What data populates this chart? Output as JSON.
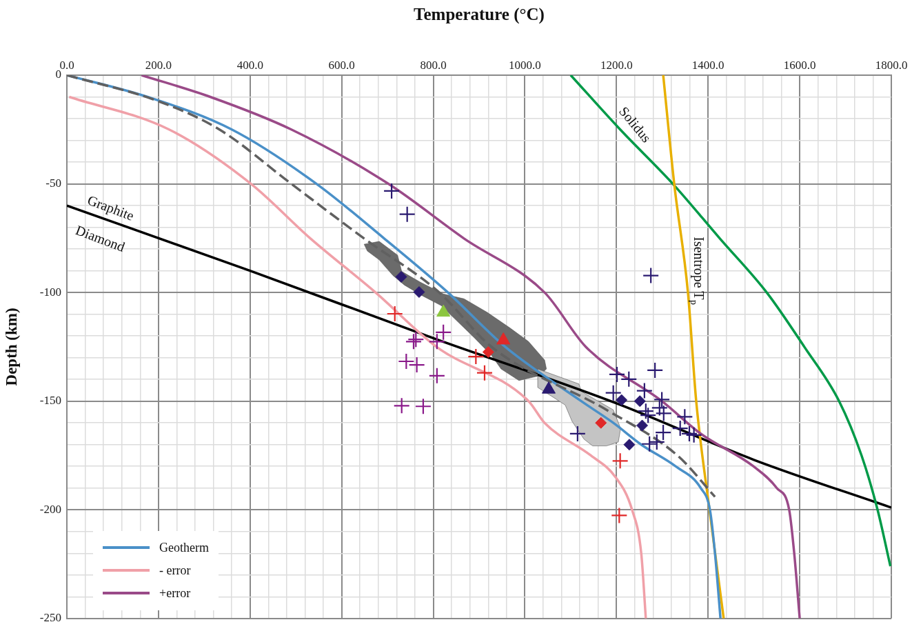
{
  "chart_data": {
    "type": "line",
    "xlabel": "Temperature (°C)",
    "ylabel": "Depth (km)",
    "xlim": [
      0,
      1800
    ],
    "xticks": [
      {
        "value": 0,
        "label": "0.0"
      },
      {
        "value": 40,
        "label": null
      },
      {
        "value": 80,
        "label": null
      },
      {
        "value": 120,
        "label": null
      },
      {
        "value": 160,
        "label": null
      },
      {
        "value": 200,
        "label": "200.0"
      },
      {
        "value": 240,
        "label": null
      },
      {
        "value": 280,
        "label": null
      },
      {
        "value": 320,
        "label": null
      },
      {
        "value": 360,
        "label": null
      },
      {
        "value": 400,
        "label": "400.0"
      },
      {
        "value": 440,
        "label": null
      },
      {
        "value": 480,
        "label": null
      },
      {
        "value": 520,
        "label": null
      },
      {
        "value": 560,
        "label": null
      },
      {
        "value": 600,
        "label": "600.0"
      },
      {
        "value": 640,
        "label": null
      },
      {
        "value": 680,
        "label": null
      },
      {
        "value": 720,
        "label": null
      },
      {
        "value": 760,
        "label": null
      },
      {
        "value": 800,
        "label": "800.0"
      },
      {
        "value": 840,
        "label": null
      },
      {
        "value": 880,
        "label": null
      },
      {
        "value": 920,
        "label": null
      },
      {
        "value": 960,
        "label": null
      },
      {
        "value": 1000,
        "label": "1000.0"
      },
      {
        "value": 1040,
        "label": null
      },
      {
        "value": 1080,
        "label": null
      },
      {
        "value": 1120,
        "label": null
      },
      {
        "value": 1160,
        "label": null
      },
      {
        "value": 1200,
        "label": "1200.0"
      },
      {
        "value": 1240,
        "label": null
      },
      {
        "value": 1280,
        "label": null
      },
      {
        "value": 1320,
        "label": null
      },
      {
        "value": 1360,
        "label": null
      },
      {
        "value": 1400,
        "label": "1400.0"
      },
      {
        "value": 1440,
        "label": null
      },
      {
        "value": 1480,
        "label": null
      },
      {
        "value": 1520,
        "label": null
      },
      {
        "value": 1560,
        "label": null
      },
      {
        "value": 1600,
        "label": "1600.0"
      },
      {
        "value": 1640,
        "label": null
      },
      {
        "value": 1680,
        "label": null
      },
      {
        "value": 1720,
        "label": null
      },
      {
        "value": 1760,
        "label": null
      },
      {
        "value": 1800,
        "label": "1800.0"
      }
    ],
    "ylim": [
      -250,
      0
    ],
    "yticks": [
      -250,
      {
        "value": -240,
        "label": null
      },
      {
        "value": -230,
        "label": null
      },
      {
        "value": -220,
        "label": null
      },
      {
        "value": -210,
        "label": null
      },
      -200,
      {
        "value": -190,
        "label": null
      },
      {
        "value": -180,
        "label": null
      },
      {
        "value": -170,
        "label": null
      },
      {
        "value": -160,
        "label": null
      },
      -150,
      {
        "value": -140,
        "label": null
      },
      {
        "value": -130,
        "label": null
      },
      {
        "value": -120,
        "label": null
      },
      {
        "value": -110,
        "label": null
      },
      -100,
      {
        "value": -90,
        "label": null
      },
      {
        "value": -80,
        "label": null
      },
      {
        "value": -70,
        "label": null
      },
      {
        "value": -60,
        "label": null
      },
      -50,
      {
        "value": -40,
        "label": null
      },
      {
        "value": -30,
        "label": null
      },
      {
        "value": -20,
        "label": null
      },
      {
        "value": -10,
        "label": null
      },
      0
    ],
    "grid": true,
    "legend": "bottom left",
    "marker": "none",
    "annotations": [
      "Graphite",
      "Diamond",
      "Solidus",
      "Isentrope T$_{p}$"
    ],
    "series": [
      {
        "type": "area",
        "color": "#6b6b6b",
        "x": [
          649,
          682,
          722,
          731,
          772,
          822,
          867,
          918,
          968,
          1008,
          1043,
          1047,
          1032,
          987,
          948,
          927,
          888,
          817,
          777,
          737,
          712,
          682,
          656
        ],
        "values": [
          -77.8,
          -76.5,
          -82.8,
          -90.3,
          -95.3,
          -100.7,
          -102.9,
          -109.2,
          -116.4,
          -122.6,
          -131.1,
          -135.2,
          -138.3,
          -140.5,
          -135.2,
          -128.9,
          -120.5,
          -106,
          -101.6,
          -96.6,
          -92.2,
          -85,
          -80.9
        ]
      },
      {
        "type": "area",
        "color": "#c4c4c4",
        "x": [
          1028,
          1118,
          1123,
          1193,
          1209,
          1204,
          1178,
          1148,
          1129,
          1103,
          1088,
          1058,
          1028
        ],
        "values": [
          -135.2,
          -142.1,
          -145.5,
          -154,
          -162.5,
          -168.8,
          -170.6,
          -170.6,
          -167.5,
          -159.3,
          -151.8,
          -147.7,
          -143.7
        ]
      },
      {
        "line_style": "solid",
        "color": "#000000",
        "x": [
          0,
          400,
          800,
          1200,
          1500,
          1800
        ],
        "values": [
          -60,
          -90,
          -121,
          -151,
          -177,
          -199
        ]
      },
      {
        "line_style": "solid",
        "color": "#009a48",
        "x": [
          1100,
          1208,
          1323,
          1425,
          1528,
          1610,
          1686,
          1735,
          1770,
          1798
        ],
        "values": [
          0,
          -25,
          -50,
          -75,
          -100,
          -125,
          -150,
          -175,
          -200,
          -226
        ]
      },
      {
        "line_style": "solid",
        "color": "#e8b000",
        "x": [
          1302,
          1326,
          1356,
          1374,
          1403,
          1434
        ],
        "values": [
          0,
          -50,
          -100,
          -150,
          -200,
          -250
        ]
      },
      {
        "line_style": "solid",
        "name": "Geotherm",
        "color": "#4a90c8",
        "x": [
          0,
          176,
          360,
          545,
          692,
          832,
          957,
          1123,
          1193,
          1254,
          1329,
          1384,
          1404,
          1415,
          1427
        ],
        "values": [
          0,
          -10,
          -25,
          -50,
          -75,
          -100,
          -125,
          -150,
          -160,
          -170,
          -180,
          -190,
          -200,
          -220,
          -250
        ]
      },
      {
        "line_style": "solid",
        "name": "- error",
        "color": "#f0a0a8",
        "x": [
          5,
          223,
          402,
          531,
          674,
          807,
          1008,
          1043,
          1144,
          1198,
          1234,
          1254,
          1264
        ],
        "values": [
          -10,
          -25,
          -50,
          -75,
          -100,
          -125,
          -150,
          -160,
          -175,
          -185,
          -200,
          -220,
          -250
        ]
      },
      {
        "line_style": "solid",
        "name": "+error",
        "color": "#9a4a88",
        "x": [
          163,
          313,
          490,
          702,
          866,
          1043,
          1133,
          1299,
          1384,
          1499,
          1550,
          1577,
          1588,
          1600
        ],
        "values": [
          0,
          -10,
          -25,
          -50,
          -75,
          -100,
          -125,
          -150,
          -165,
          -180,
          -190,
          -200,
          -220,
          -250
        ]
      },
      {
        "line_style": "dashed",
        "color": "#606060",
        "x": [
          0,
          200,
          333,
          490,
          648,
          813,
          927,
          1178,
          1333,
          1415
        ],
        "values": [
          0,
          -12,
          -25,
          -50,
          -75,
          -100,
          -125,
          -154,
          -175,
          -194
        ]
      },
      {
        "type": "scatter",
        "marker": "cross",
        "color": "#2a1a70",
        "x": [
          709,
          743,
          1275,
          1115,
          1201,
          1227,
          1284,
          1193,
          1261,
          1299,
          1264,
          1294,
          1303,
          1349,
          1269,
          1302,
          1288,
          1272,
          1359,
          1369,
          1339
        ],
        "values": [
          -53.3,
          -64,
          -92.2,
          -165,
          -137.7,
          -139.9,
          -135.8,
          -146.2,
          -145.2,
          -149.3,
          -154.6,
          -153.1,
          -155.6,
          -157.2,
          -156.5,
          -164.4,
          -168.8,
          -169.7,
          -165,
          -165.6,
          -162.5
        ]
      },
      {
        "type": "scatter",
        "marker": "cross",
        "color": "#e02828",
        "x": [
          716,
          893,
          912,
          1208,
          1206
        ],
        "values": [
          -109.8,
          -129.5,
          -137,
          -177.5,
          -202.6
        ]
      },
      {
        "type": "scatter",
        "marker": "cross",
        "color": "#8a1a8a",
        "x": [
          757,
          762,
          808,
          822,
          741,
          764,
          808,
          731,
          778
        ],
        "values": [
          -122.6,
          -121.6,
          -122.6,
          -118.3,
          -131.7,
          -133.3,
          -138.3,
          -152.1,
          -152.4
        ]
      },
      {
        "type": "scatter",
        "marker": "diamond",
        "color": "#2a1a70",
        "x": [
          730,
          769,
          1211,
          1251,
          1256,
          1228
        ],
        "values": [
          -92.8,
          -99.8,
          -149.5,
          -150,
          -161.2,
          -170
        ]
      },
      {
        "type": "scatter",
        "marker": "diamond",
        "color": "#e02828",
        "x": [
          920,
          1166
        ],
        "values": [
          -127.4,
          -160
        ]
      },
      {
        "type": "scatter",
        "marker": "triangle",
        "color": "#8cc63f",
        "x": [
          822
        ],
        "values": [
          -109.2
        ]
      },
      {
        "type": "scatter",
        "marker": "triangle",
        "color": "#e02828",
        "x": [
          953
        ],
        "values": [
          -122
        ]
      },
      {
        "type": "scatter",
        "marker": "triangle",
        "color": "#2a1a70",
        "x": [
          1052
        ],
        "values": [
          -144.6
        ]
      }
    ]
  }
}
